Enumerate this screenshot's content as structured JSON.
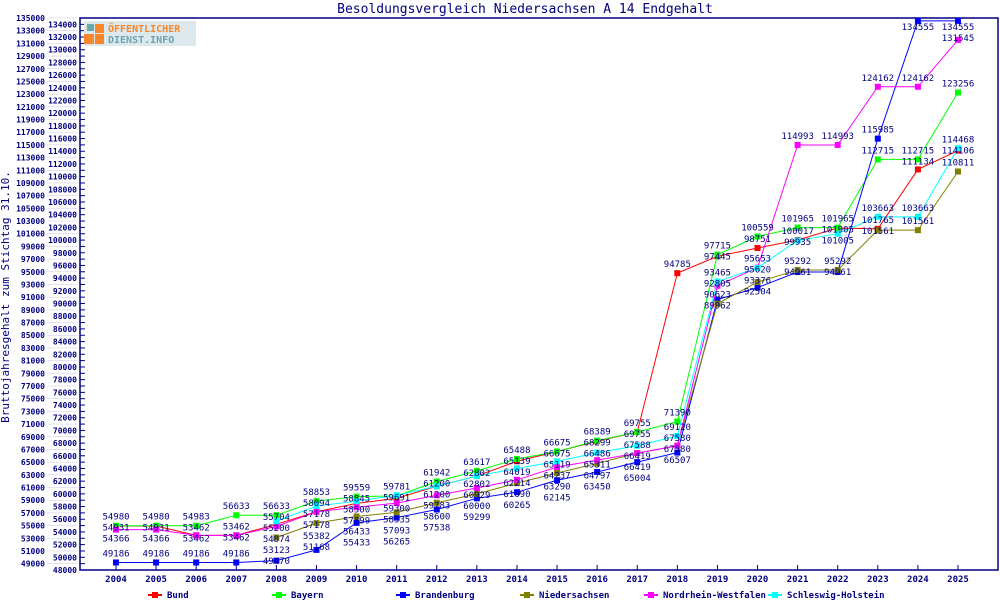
{
  "logo_text": "ÖFFENTLICHER DIENST.INFO",
  "chart_data": {
    "type": "line",
    "title": "Besoldungsvergleich Niedersachsen A 14 Endgehalt",
    "xlabel": "",
    "ylabel": "Bruttojahresgehalt zum Stichtag 31.10.",
    "ylim": [
      48000,
      135000
    ],
    "ytick_step": 1000,
    "grid": false,
    "legend_position": "bottom",
    "x": [
      2004,
      2005,
      2006,
      2007,
      2008,
      2009,
      2010,
      2011,
      2012,
      2013,
      2014,
      2015,
      2016,
      2017,
      2018,
      2019,
      2020,
      2021,
      2022,
      2023,
      2024,
      2025
    ],
    "series": [
      {
        "name": "Bund",
        "color": "#ff0000",
        "values": [
          54931,
          54931,
          53462,
          53462,
          55200,
          57178,
          58500,
          59300,
          61200,
          62802,
          65139,
          66675,
          68299,
          69755,
          94785,
          97445,
          98751,
          100017,
          101905,
          101765,
          111134,
          114106
        ]
      },
      {
        "name": "Bayern",
        "color": "#00ff00",
        "values": [
          54980,
          54980,
          54983,
          56633,
          56633,
          58853,
          59559,
          59691,
          61942,
          63617,
          65488,
          66675,
          68389,
          69755,
          71390,
          97715,
          100559,
          101965,
          101965,
          112715,
          112715,
          123256
        ]
      },
      {
        "name": "Brandenburg",
        "color": "#0000ff",
        "values": [
          49186,
          49186,
          49186,
          49186,
          49470,
          51168,
          55433,
          56265,
          57538,
          59299,
          60265,
          62145,
          63450,
          65004,
          66507,
          90623,
          92504,
          94961,
          94961,
          115985,
          134555,
          134555
        ]
      },
      {
        "name": "Niedersachsen",
        "color": "#808000",
        "values": [
          null,
          null,
          null,
          null,
          53123,
          55382,
          56433,
          57093,
          58600,
          60000,
          61690,
          63290,
          64797,
          66419,
          67580,
          89962,
          93376,
          95292,
          95292,
          101561,
          101561,
          110811
        ]
      },
      {
        "name": "Nordrhein-Westfalen",
        "color": "#ff00ff",
        "values": [
          54366,
          54366,
          53462,
          53462,
          54874,
          57178,
          57899,
          58535,
          59783,
          60929,
          62214,
          64237,
          65311,
          66419,
          67580,
          92805,
          95653,
          114993,
          114993,
          124162,
          124162,
          131545
        ]
      },
      {
        "name": "Schleswig-Holstein",
        "color": "#00ffff",
        "values": [
          null,
          null,
          null,
          null,
          55704,
          58094,
          58845,
          59781,
          61200,
          62802,
          64019,
          65119,
          66486,
          67588,
          69120,
          93465,
          95620,
          99935,
          101005,
          103663,
          103663,
          114468
        ]
      }
    ]
  }
}
